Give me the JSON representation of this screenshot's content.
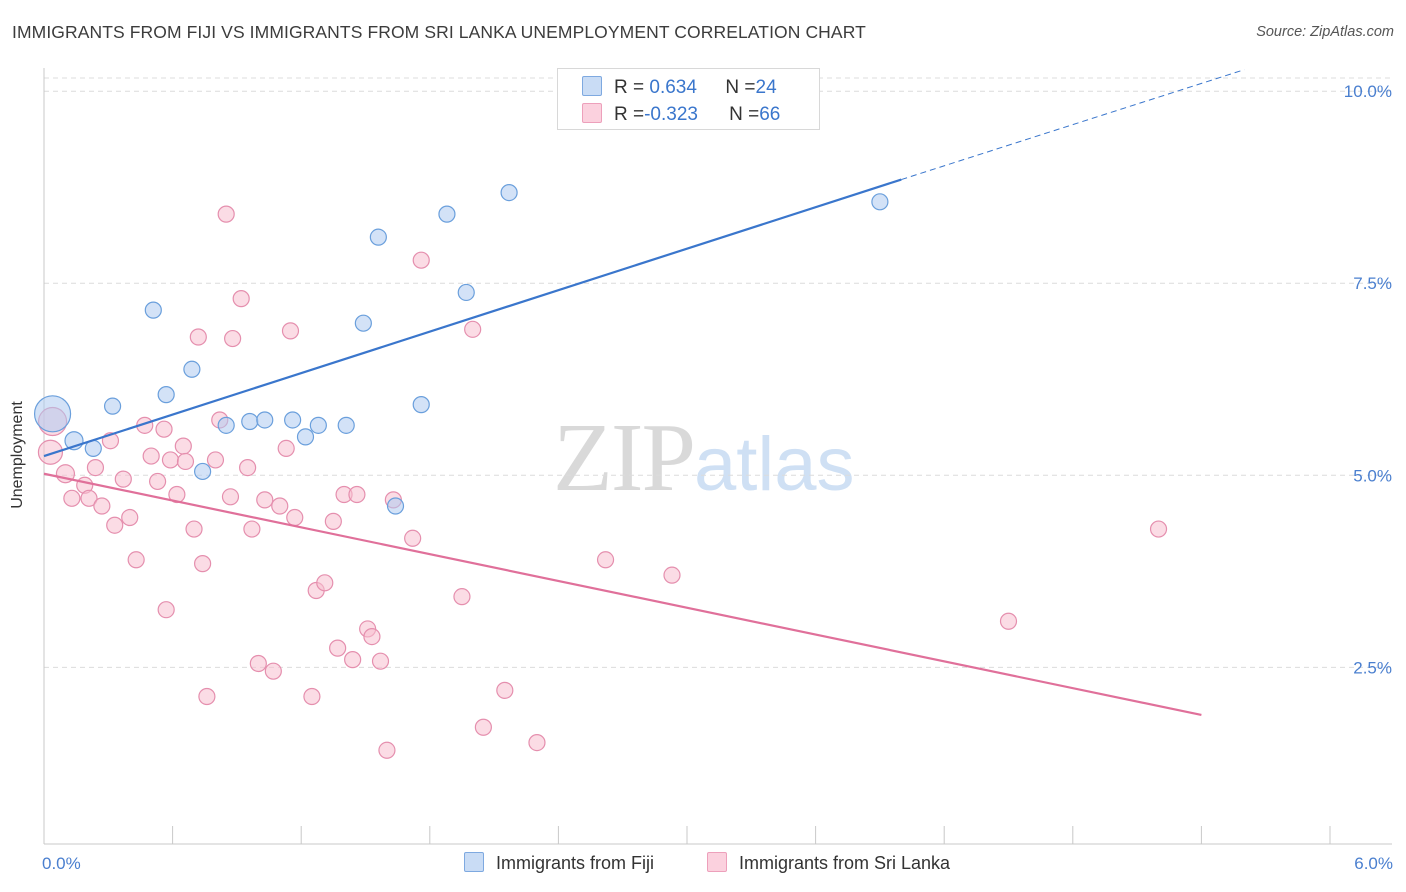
{
  "title": "IMMIGRANTS FROM FIJI VS IMMIGRANTS FROM SRI LANKA UNEMPLOYMENT CORRELATION CHART",
  "source": "Source: ZipAtlas.com",
  "watermark": {
    "zip": "ZIP",
    "atlas": "atlas"
  },
  "legend_top": {
    "rows": [
      {
        "r_label": "R = ",
        "r_value": "0.634",
        "n_label": "N = ",
        "n_value": "24",
        "color": "#aecbf0"
      },
      {
        "r_label": "R = ",
        "r_value": "-0.323",
        "n_label": "N = ",
        "n_value": "66",
        "color": "#f8bfd0"
      }
    ]
  },
  "legend_bottom": {
    "items": [
      {
        "label": "Immigrants from Fiji",
        "color": "#aecbf0"
      },
      {
        "label": "Immigrants from Sri Lanka",
        "color": "#f8bfd0"
      }
    ]
  },
  "chart_data": {
    "type": "scatter",
    "title": "IMMIGRANTS FROM FIJI VS IMMIGRANTS FROM SRI LANKA UNEMPLOYMENT CORRELATION CHART",
    "xlabel": "",
    "ylabel": "Unemployment",
    "xlim": [
      0,
      6
    ],
    "ylim": [
      0.2,
      10.25
    ],
    "x_tick_labels": [
      "0.0%",
      "6.0%"
    ],
    "y_ticks": [
      2.5,
      5.0,
      7.5,
      10.0
    ],
    "y_tick_labels": [
      "2.5%",
      "5.0%",
      "7.5%",
      "10.0%"
    ],
    "grid": "horizontal dashed",
    "legend_position": "top-center",
    "series": [
      {
        "name": "Immigrants from Fiji",
        "color": "#aecbf0",
        "edge": "#6a9fdc",
        "line_color": "#3a76cc",
        "trend": {
          "x0": 0.0,
          "y0": 5.25,
          "x1": 4.0,
          "y1": 8.85,
          "dashed_to_x": 5.6,
          "dashed_to_y": 10.28
        },
        "points": [
          [
            0.04,
            5.8,
            18
          ],
          [
            0.14,
            5.45,
            9
          ],
          [
            0.23,
            5.35,
            8
          ],
          [
            0.32,
            5.9,
            8
          ],
          [
            0.51,
            7.15,
            8
          ],
          [
            0.57,
            6.05,
            8
          ],
          [
            0.69,
            6.38,
            8
          ],
          [
            0.74,
            5.05,
            8
          ],
          [
            0.85,
            5.65,
            8
          ],
          [
            0.96,
            5.7,
            8
          ],
          [
            1.03,
            5.72,
            8
          ],
          [
            1.16,
            5.72,
            8
          ],
          [
            1.22,
            5.5,
            8
          ],
          [
            1.28,
            5.65,
            8
          ],
          [
            1.41,
            5.65,
            8
          ],
          [
            1.49,
            6.98,
            8
          ],
          [
            1.56,
            8.1,
            8
          ],
          [
            1.64,
            4.6,
            8
          ],
          [
            1.76,
            5.92,
            8
          ],
          [
            1.88,
            8.4,
            8
          ],
          [
            1.97,
            7.38,
            8
          ],
          [
            2.17,
            8.68,
            8
          ],
          [
            3.9,
            8.56,
            8
          ]
        ]
      },
      {
        "name": "Immigrants from Sri Lanka",
        "color": "#f8bfd0",
        "edge": "#e58fae",
        "line_color": "#e0709a",
        "trend": {
          "x0": 0.0,
          "y0": 5.02,
          "x1": 5.4,
          "y1": 1.88
        },
        "points": [
          [
            0.04,
            5.7,
            14
          ],
          [
            0.03,
            5.3,
            12
          ],
          [
            0.1,
            5.02,
            9
          ],
          [
            0.13,
            4.7,
            8
          ],
          [
            0.19,
            4.87,
            8
          ],
          [
            0.21,
            4.7,
            8
          ],
          [
            0.24,
            5.1,
            8
          ],
          [
            0.27,
            4.6,
            8
          ],
          [
            0.31,
            5.45,
            8
          ],
          [
            0.33,
            4.35,
            8
          ],
          [
            0.37,
            4.95,
            8
          ],
          [
            0.4,
            4.45,
            8
          ],
          [
            0.43,
            3.9,
            8
          ],
          [
            0.47,
            5.65,
            8
          ],
          [
            0.5,
            5.25,
            8
          ],
          [
            0.53,
            4.92,
            8
          ],
          [
            0.56,
            5.6,
            8
          ],
          [
            0.57,
            3.25,
            8
          ],
          [
            0.59,
            5.2,
            8
          ],
          [
            0.62,
            4.75,
            8
          ],
          [
            0.65,
            5.38,
            8
          ],
          [
            0.66,
            5.18,
            8
          ],
          [
            0.7,
            4.3,
            8
          ],
          [
            0.72,
            6.8,
            8
          ],
          [
            0.74,
            3.85,
            8
          ],
          [
            0.76,
            2.12,
            8
          ],
          [
            0.8,
            5.2,
            8
          ],
          [
            0.82,
            5.72,
            8
          ],
          [
            0.85,
            8.4,
            8
          ],
          [
            0.87,
            4.72,
            8
          ],
          [
            0.88,
            6.78,
            8
          ],
          [
            0.92,
            7.3,
            8
          ],
          [
            0.95,
            5.1,
            8
          ],
          [
            0.97,
            4.3,
            8
          ],
          [
            1.0,
            2.55,
            8
          ],
          [
            1.03,
            4.68,
            8
          ],
          [
            1.07,
            2.45,
            8
          ],
          [
            1.1,
            4.6,
            8
          ],
          [
            1.13,
            5.35,
            8
          ],
          [
            1.15,
            6.88,
            8
          ],
          [
            1.17,
            4.45,
            8
          ],
          [
            1.25,
            2.12,
            8
          ],
          [
            1.27,
            3.5,
            8
          ],
          [
            1.31,
            3.6,
            8
          ],
          [
            1.35,
            4.4,
            8
          ],
          [
            1.37,
            2.75,
            8
          ],
          [
            1.4,
            4.75,
            8
          ],
          [
            1.44,
            2.6,
            8
          ],
          [
            1.46,
            4.75,
            8
          ],
          [
            1.51,
            3.0,
            8
          ],
          [
            1.53,
            2.9,
            8
          ],
          [
            1.57,
            2.58,
            8
          ],
          [
            1.6,
            1.42,
            8
          ],
          [
            1.63,
            4.68,
            8
          ],
          [
            1.72,
            4.18,
            8
          ],
          [
            1.76,
            7.8,
            8
          ],
          [
            1.95,
            3.42,
            8
          ],
          [
            2.0,
            6.9,
            8
          ],
          [
            2.05,
            1.72,
            8
          ],
          [
            2.15,
            2.2,
            8
          ],
          [
            2.3,
            1.52,
            8
          ],
          [
            2.62,
            3.9,
            8
          ],
          [
            2.93,
            3.7,
            8
          ],
          [
            4.5,
            3.1,
            8
          ],
          [
            5.2,
            4.3,
            8
          ]
        ]
      }
    ]
  }
}
